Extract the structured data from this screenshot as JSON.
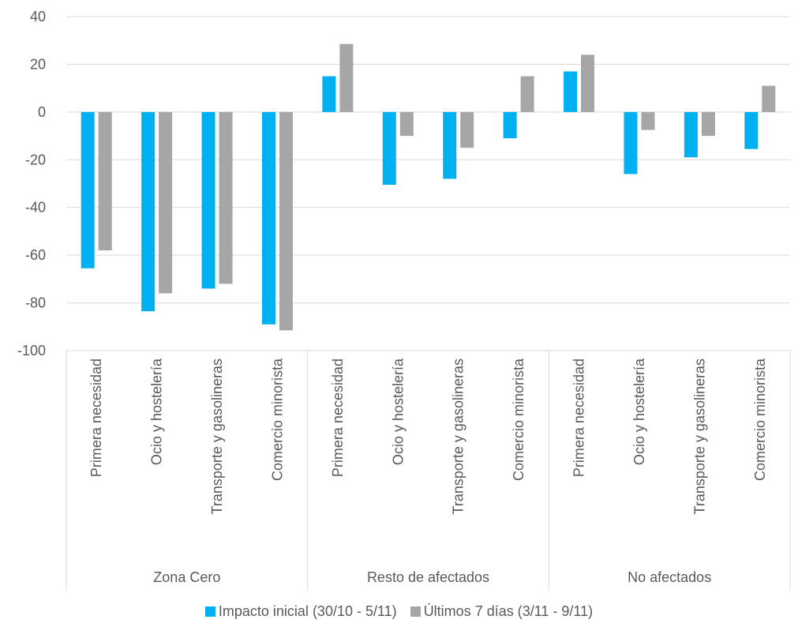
{
  "chart_data": {
    "type": "bar",
    "title": "",
    "xlabel": "",
    "ylabel": "",
    "ylim": [
      -100,
      40
    ],
    "yticks": [
      40,
      20,
      0,
      -20,
      -40,
      -60,
      -80,
      -100
    ],
    "grid": true,
    "legend_position": "bottom",
    "groups": [
      {
        "name": "Zona Cero",
        "categories": [
          "Primera necesidad",
          "Ocio y hostelería",
          "Transporte y gasolineras",
          "Comercio minorista"
        ]
      },
      {
        "name": "Resto de afectados",
        "categories": [
          "Primera necesidad",
          "Ocio y hostelería",
          "Transporte y gasolineras",
          "Comercio minorista"
        ]
      },
      {
        "name": "No afectados",
        "categories": [
          "Primera necesidad",
          "Ocio y hostelería",
          "Transporte y gasolineras",
          "Comercio minorista"
        ]
      }
    ],
    "series": [
      {
        "name": "Impacto inicial (30/10 - 5/11)",
        "color": "#00B0F0",
        "values": [
          -65.5,
          -83.5,
          -74,
          -89,
          15,
          -30.5,
          -28,
          -11,
          17,
          -26,
          -19,
          -15.5
        ]
      },
      {
        "name": "Últimos 7 días (3/11 - 9/11)",
        "color": "#A6A6A6",
        "values": [
          -58,
          -76,
          -72,
          -91.5,
          28.5,
          -10,
          -15,
          15,
          24,
          -7.5,
          -10,
          11
        ]
      }
    ]
  }
}
